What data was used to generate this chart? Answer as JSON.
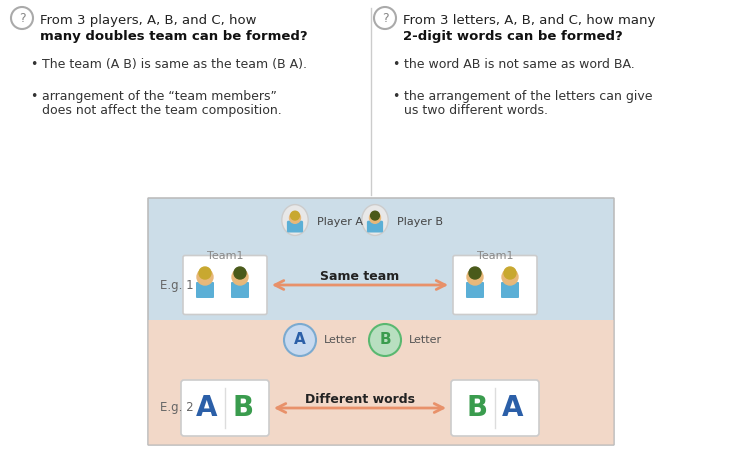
{
  "bg_color": "#ffffff",
  "left_title_line1": "From 3 players, A, B, and C, how",
  "left_title_line2": "many doubles team can be formed?",
  "right_title_line1": "From 3 letters, A, B, and C, how many",
  "right_title_line2": "2-digit words can be formed?",
  "left_bullet1": "The team (A B) is same as the team (B A).",
  "left_bullet2_line1": "arrangement of the “team members”",
  "left_bullet2_line2": "does not affect the team composition.",
  "right_bullet1": "the word AB is not same as word BA.",
  "right_bullet2_line1": "the arrangement of the letters can give",
  "right_bullet2_line2": "us two different words.",
  "diagram_bg_blue": "#ccdde8",
  "diagram_bg_peach": "#f2d8c8",
  "arrow_color": "#e8916a",
  "same_team_text": "Same team",
  "diff_words_text": "Different words",
  "eg1_label": "E.g. 1",
  "eg2_label": "E.g. 2",
  "player_a_label": "Player A",
  "player_b_label": "Player B",
  "letter_label": "Letter",
  "A_color": "#2b5fa8",
  "B_color": "#3a9c4e",
  "circle_A_fill": "#c8daf0",
  "circle_B_fill": "#b8dfc0",
  "circle_A_edge": "#7baad0",
  "circle_B_edge": "#5ab870",
  "team_label_color": "#888888",
  "divider_color": "#cccccc",
  "text_color": "#222222",
  "bullet_color": "#333333",
  "eg_label_color": "#666666",
  "icon_shirt_blue": "#5bafd6",
  "icon_shirt_olive": "#6b7c3a",
  "icon_skin": "#e8b87a",
  "icon_hair_blond": "#c8a830",
  "icon_hair_dark": "#4a5a1a"
}
